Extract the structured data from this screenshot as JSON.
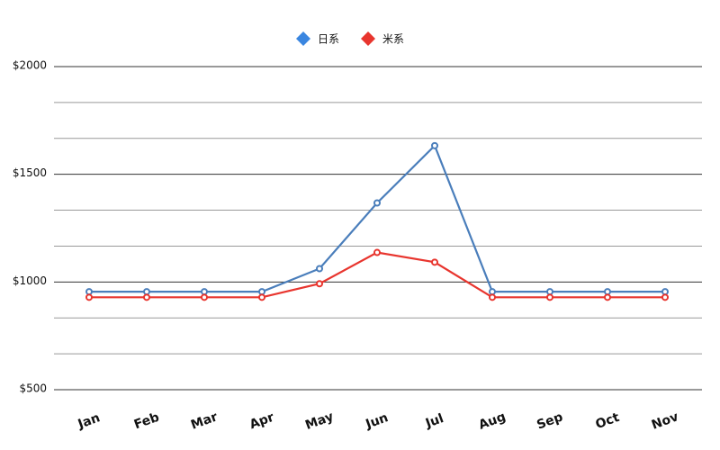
{
  "chart_data": {
    "type": "line",
    "categories": [
      "Jan",
      "Feb",
      "Mar",
      "Apr",
      "May",
      "Jun",
      "Jul",
      "Aug",
      "Sep",
      "Oct",
      "Nov"
    ],
    "series": [
      {
        "name": "日系",
        "color": "#4a7ebb",
        "legend_color": "#3a86e0",
        "values": [
          955,
          955,
          955,
          955,
          1062,
          1367,
          1633,
          955,
          955,
          955,
          955
        ]
      },
      {
        "name": "米系",
        "color": "#e8352e",
        "legend_color": "#e8352e",
        "values": [
          929,
          929,
          929,
          929,
          992,
          1137,
          1092,
          929,
          929,
          929,
          929
        ]
      }
    ],
    "ylim": [
      500,
      2000
    ],
    "yticks": [
      {
        "value": 500,
        "label": "$500"
      },
      {
        "value": 1000,
        "label": "$1000"
      },
      {
        "value": 1500,
        "label": "$1500"
      },
      {
        "value": 2000,
        "label": "$2000"
      }
    ],
    "minor_grid_divisions": 3,
    "grid": true,
    "legend": "top"
  }
}
